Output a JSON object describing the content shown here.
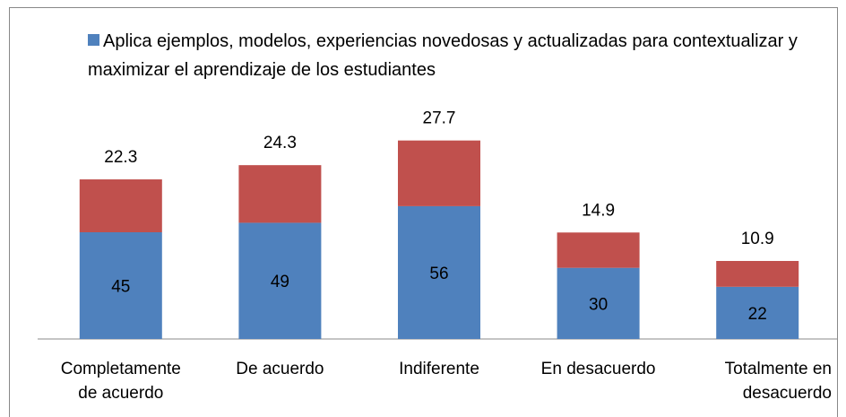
{
  "chart_data": {
    "type": "bar",
    "stacked": true,
    "categories": [
      "Completamente de acuerdo",
      "De acuerdo",
      "Indiferente",
      "En desacuerdo",
      "Totalmente en desacuerdo"
    ],
    "series": [
      {
        "name": "Aplica ejemplos, modelos, experiencias novedosas y actualizadas para contextualizar y maximizar el aprendizaje de los estudiantes",
        "color": "#4f81bd",
        "values": [
          45,
          49,
          56,
          30,
          22
        ]
      },
      {
        "color": "#c0504d",
        "values": [
          22.3,
          24.3,
          27.7,
          14.9,
          10.9
        ]
      }
    ],
    "ylim": [
      0,
      90
    ],
    "legend": "top"
  }
}
